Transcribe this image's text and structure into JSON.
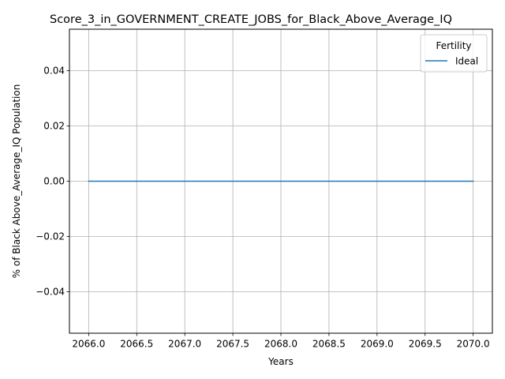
{
  "chart_data": {
    "type": "line",
    "title": "Score_3_in_GOVERNMENT_CREATE_JOBS_for_Black_Above_Average_IQ",
    "xlabel": "Years",
    "ylabel": "% of Black Above_Average_IQ Population",
    "xlim": [
      2065.8,
      2070.2
    ],
    "ylim": [
      -0.055,
      0.055
    ],
    "xticks": [
      2066.0,
      2066.5,
      2067.0,
      2067.5,
      2068.0,
      2068.5,
      2069.0,
      2069.5,
      2070.0
    ],
    "xtick_labels": [
      "2066.0",
      "2066.5",
      "2067.0",
      "2067.5",
      "2068.0",
      "2068.5",
      "2069.0",
      "2069.5",
      "2070.0"
    ],
    "yticks": [
      -0.04,
      -0.02,
      0.0,
      0.02,
      0.04
    ],
    "ytick_labels": [
      "−0.04",
      "−0.02",
      "0.00",
      "0.02",
      "0.04"
    ],
    "grid": true,
    "legend": {
      "title": "Fertility",
      "placement": "top-right"
    },
    "series": [
      {
        "name": "Ideal",
        "color": "#1f77b4",
        "x": [
          2066,
          2067,
          2068,
          2069,
          2070
        ],
        "y": [
          0.0,
          0.0,
          0.0,
          0.0,
          0.0
        ]
      }
    ]
  }
}
